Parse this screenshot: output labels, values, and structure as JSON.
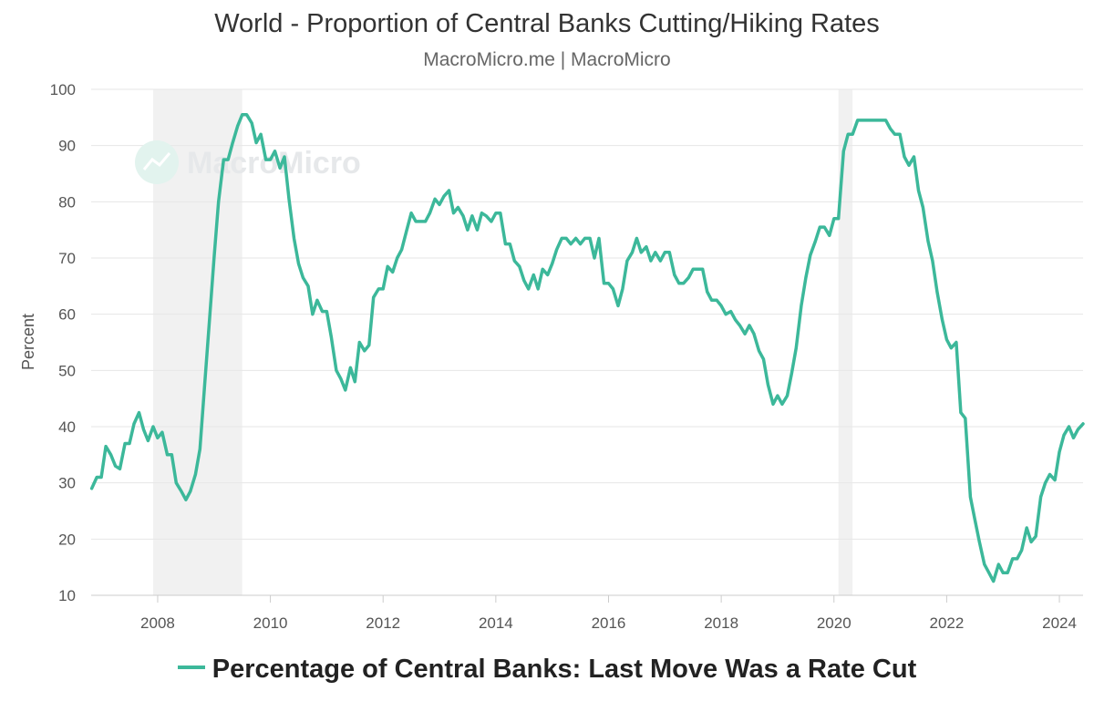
{
  "chart_data": {
    "type": "line",
    "title": "World - Proportion of Central Banks Cutting/Hiking Rates",
    "subtitle": "MacroMicro.me | MacroMicro",
    "watermark": "MacroMicro",
    "xlabel": "",
    "ylabel": "Percent",
    "ylim": [
      10,
      100
    ],
    "yticks": [
      100,
      90,
      80,
      70,
      60,
      50,
      40,
      30,
      20,
      10
    ],
    "xlim": [
      2006.82,
      2024.42
    ],
    "xticks": [
      "2008",
      "2010",
      "2012",
      "2014",
      "2016",
      "2018",
      "2020",
      "2022",
      "2024"
    ],
    "grid": true,
    "legend_position": "bottom",
    "shaded_periods": [
      [
        2007.92,
        2009.5
      ],
      [
        2020.08,
        2020.33
      ]
    ],
    "colors": {
      "line": "#3cb89a",
      "shade": "#f1f1f1",
      "grid": "#e6e6e6"
    },
    "series": [
      {
        "name": "Percentage of Central Banks: Last Move Was a Rate Cut",
        "points": [
          [
            2006.83,
            29
          ],
          [
            2006.92,
            31
          ],
          [
            2007.0,
            31
          ],
          [
            2007.08,
            36.5
          ],
          [
            2007.17,
            35
          ],
          [
            2007.25,
            33
          ],
          [
            2007.33,
            32.5
          ],
          [
            2007.42,
            37
          ],
          [
            2007.5,
            37
          ],
          [
            2007.58,
            40.5
          ],
          [
            2007.67,
            42.5
          ],
          [
            2007.75,
            39.5
          ],
          [
            2007.83,
            37.5
          ],
          [
            2007.92,
            40
          ],
          [
            2008.0,
            38
          ],
          [
            2008.08,
            39
          ],
          [
            2008.17,
            35
          ],
          [
            2008.25,
            35
          ],
          [
            2008.33,
            30
          ],
          [
            2008.42,
            28.5
          ],
          [
            2008.5,
            27
          ],
          [
            2008.58,
            28.5
          ],
          [
            2008.67,
            31.5
          ],
          [
            2008.75,
            36
          ],
          [
            2008.83,
            47
          ],
          [
            2008.92,
            59
          ],
          [
            2009.0,
            70
          ],
          [
            2009.08,
            80
          ],
          [
            2009.17,
            87.5
          ],
          [
            2009.25,
            87.5
          ],
          [
            2009.33,
            90.5
          ],
          [
            2009.42,
            93.5
          ],
          [
            2009.5,
            95.5
          ],
          [
            2009.58,
            95.5
          ],
          [
            2009.67,
            94
          ],
          [
            2009.75,
            90.5
          ],
          [
            2009.83,
            92
          ],
          [
            2009.92,
            87.5
          ],
          [
            2010.0,
            87.5
          ],
          [
            2010.08,
            89
          ],
          [
            2010.17,
            86
          ],
          [
            2010.25,
            88
          ],
          [
            2010.33,
            80.5
          ],
          [
            2010.42,
            73.5
          ],
          [
            2010.5,
            69
          ],
          [
            2010.58,
            66.5
          ],
          [
            2010.67,
            65
          ],
          [
            2010.75,
            60
          ],
          [
            2010.83,
            62.5
          ],
          [
            2010.92,
            60.5
          ],
          [
            2011.0,
            60.5
          ],
          [
            2011.08,
            56
          ],
          [
            2011.17,
            50
          ],
          [
            2011.25,
            48.5
          ],
          [
            2011.33,
            46.5
          ],
          [
            2011.42,
            50.5
          ],
          [
            2011.5,
            48
          ],
          [
            2011.58,
            55
          ],
          [
            2011.67,
            53.5
          ],
          [
            2011.75,
            54.5
          ],
          [
            2011.83,
            63
          ],
          [
            2011.92,
            64.5
          ],
          [
            2012.0,
            64.5
          ],
          [
            2012.08,
            68.5
          ],
          [
            2012.17,
            67.5
          ],
          [
            2012.25,
            70
          ],
          [
            2012.33,
            71.5
          ],
          [
            2012.42,
            75
          ],
          [
            2012.5,
            78
          ],
          [
            2012.58,
            76.5
          ],
          [
            2012.67,
            76.5
          ],
          [
            2012.75,
            76.5
          ],
          [
            2012.83,
            78
          ],
          [
            2012.92,
            80.5
          ],
          [
            2013.0,
            79.5
          ],
          [
            2013.08,
            81
          ],
          [
            2013.17,
            82
          ],
          [
            2013.25,
            78
          ],
          [
            2013.33,
            79
          ],
          [
            2013.42,
            77.5
          ],
          [
            2013.5,
            75
          ],
          [
            2013.58,
            77.5
          ],
          [
            2013.67,
            75
          ],
          [
            2013.75,
            78
          ],
          [
            2013.83,
            77.5
          ],
          [
            2013.92,
            76.5
          ],
          [
            2014.0,
            78
          ],
          [
            2014.08,
            78
          ],
          [
            2014.17,
            72.5
          ],
          [
            2014.25,
            72.5
          ],
          [
            2014.33,
            69.5
          ],
          [
            2014.42,
            68.5
          ],
          [
            2014.5,
            66
          ],
          [
            2014.58,
            64.5
          ],
          [
            2014.67,
            67
          ],
          [
            2014.75,
            64.5
          ],
          [
            2014.83,
            68
          ],
          [
            2014.92,
            67
          ],
          [
            2015.0,
            69
          ],
          [
            2015.08,
            71.5
          ],
          [
            2015.17,
            73.5
          ],
          [
            2015.25,
            73.5
          ],
          [
            2015.33,
            72.5
          ],
          [
            2015.42,
            73.5
          ],
          [
            2015.5,
            72.5
          ],
          [
            2015.58,
            73.5
          ],
          [
            2015.67,
            73.5
          ],
          [
            2015.75,
            70
          ],
          [
            2015.83,
            73.5
          ],
          [
            2015.92,
            65.5
          ],
          [
            2016.0,
            65.5
          ],
          [
            2016.08,
            64.5
          ],
          [
            2016.17,
            61.5
          ],
          [
            2016.25,
            64.5
          ],
          [
            2016.33,
            69.5
          ],
          [
            2016.42,
            71
          ],
          [
            2016.5,
            73.5
          ],
          [
            2016.58,
            71
          ],
          [
            2016.67,
            72
          ],
          [
            2016.75,
            69.5
          ],
          [
            2016.83,
            71
          ],
          [
            2016.92,
            69.5
          ],
          [
            2017.0,
            71
          ],
          [
            2017.08,
            71
          ],
          [
            2017.17,
            67
          ],
          [
            2017.25,
            65.5
          ],
          [
            2017.33,
            65.5
          ],
          [
            2017.42,
            66.5
          ],
          [
            2017.5,
            68
          ],
          [
            2017.58,
            68
          ],
          [
            2017.67,
            68
          ],
          [
            2017.75,
            64
          ],
          [
            2017.83,
            62.5
          ],
          [
            2017.92,
            62.5
          ],
          [
            2018.0,
            61.5
          ],
          [
            2018.08,
            60
          ],
          [
            2018.17,
            60.5
          ],
          [
            2018.25,
            59
          ],
          [
            2018.33,
            58
          ],
          [
            2018.42,
            56.5
          ],
          [
            2018.5,
            58
          ],
          [
            2018.58,
            56.5
          ],
          [
            2018.67,
            53.5
          ],
          [
            2018.75,
            52
          ],
          [
            2018.83,
            47.5
          ],
          [
            2018.92,
            44
          ],
          [
            2019.0,
            45.5
          ],
          [
            2019.08,
            44
          ],
          [
            2019.17,
            45.5
          ],
          [
            2019.25,
            49.5
          ],
          [
            2019.33,
            54
          ],
          [
            2019.42,
            61.5
          ],
          [
            2019.5,
            66.5
          ],
          [
            2019.58,
            70.5
          ],
          [
            2019.67,
            73
          ],
          [
            2019.75,
            75.5
          ],
          [
            2019.83,
            75.5
          ],
          [
            2019.92,
            74
          ],
          [
            2020.0,
            77
          ],
          [
            2020.08,
            77
          ],
          [
            2020.17,
            89
          ],
          [
            2020.25,
            92
          ],
          [
            2020.33,
            92
          ],
          [
            2020.42,
            94.5
          ],
          [
            2020.5,
            94.5
          ],
          [
            2020.58,
            94.5
          ],
          [
            2020.67,
            94.5
          ],
          [
            2020.75,
            94.5
          ],
          [
            2020.83,
            94.5
          ],
          [
            2020.92,
            94.5
          ],
          [
            2021.0,
            93
          ],
          [
            2021.08,
            92
          ],
          [
            2021.17,
            92
          ],
          [
            2021.25,
            88
          ],
          [
            2021.33,
            86.5
          ],
          [
            2021.42,
            88
          ],
          [
            2021.5,
            82
          ],
          [
            2021.58,
            79
          ],
          [
            2021.67,
            73
          ],
          [
            2021.75,
            69.5
          ],
          [
            2021.83,
            64
          ],
          [
            2021.92,
            59
          ],
          [
            2022.0,
            55.5
          ],
          [
            2022.08,
            54
          ],
          [
            2022.17,
            55
          ],
          [
            2022.25,
            42.5
          ],
          [
            2022.33,
            41.5
          ],
          [
            2022.42,
            27.5
          ],
          [
            2022.5,
            23.5
          ],
          [
            2022.58,
            19.5
          ],
          [
            2022.67,
            15.5
          ],
          [
            2022.75,
            14
          ],
          [
            2022.83,
            12.5
          ],
          [
            2022.92,
            15.5
          ],
          [
            2023.0,
            14
          ],
          [
            2023.08,
            14
          ],
          [
            2023.17,
            16.5
          ],
          [
            2023.25,
            16.5
          ],
          [
            2023.33,
            18
          ],
          [
            2023.42,
            22
          ],
          [
            2023.5,
            19.5
          ],
          [
            2023.58,
            20.5
          ],
          [
            2023.67,
            27.5
          ],
          [
            2023.75,
            30
          ],
          [
            2023.83,
            31.5
          ],
          [
            2023.92,
            30.5
          ],
          [
            2024.0,
            35.5
          ],
          [
            2024.08,
            38.5
          ],
          [
            2024.17,
            40
          ],
          [
            2024.25,
            38
          ],
          [
            2024.33,
            39.5
          ],
          [
            2024.42,
            40.5
          ]
        ]
      }
    ]
  }
}
